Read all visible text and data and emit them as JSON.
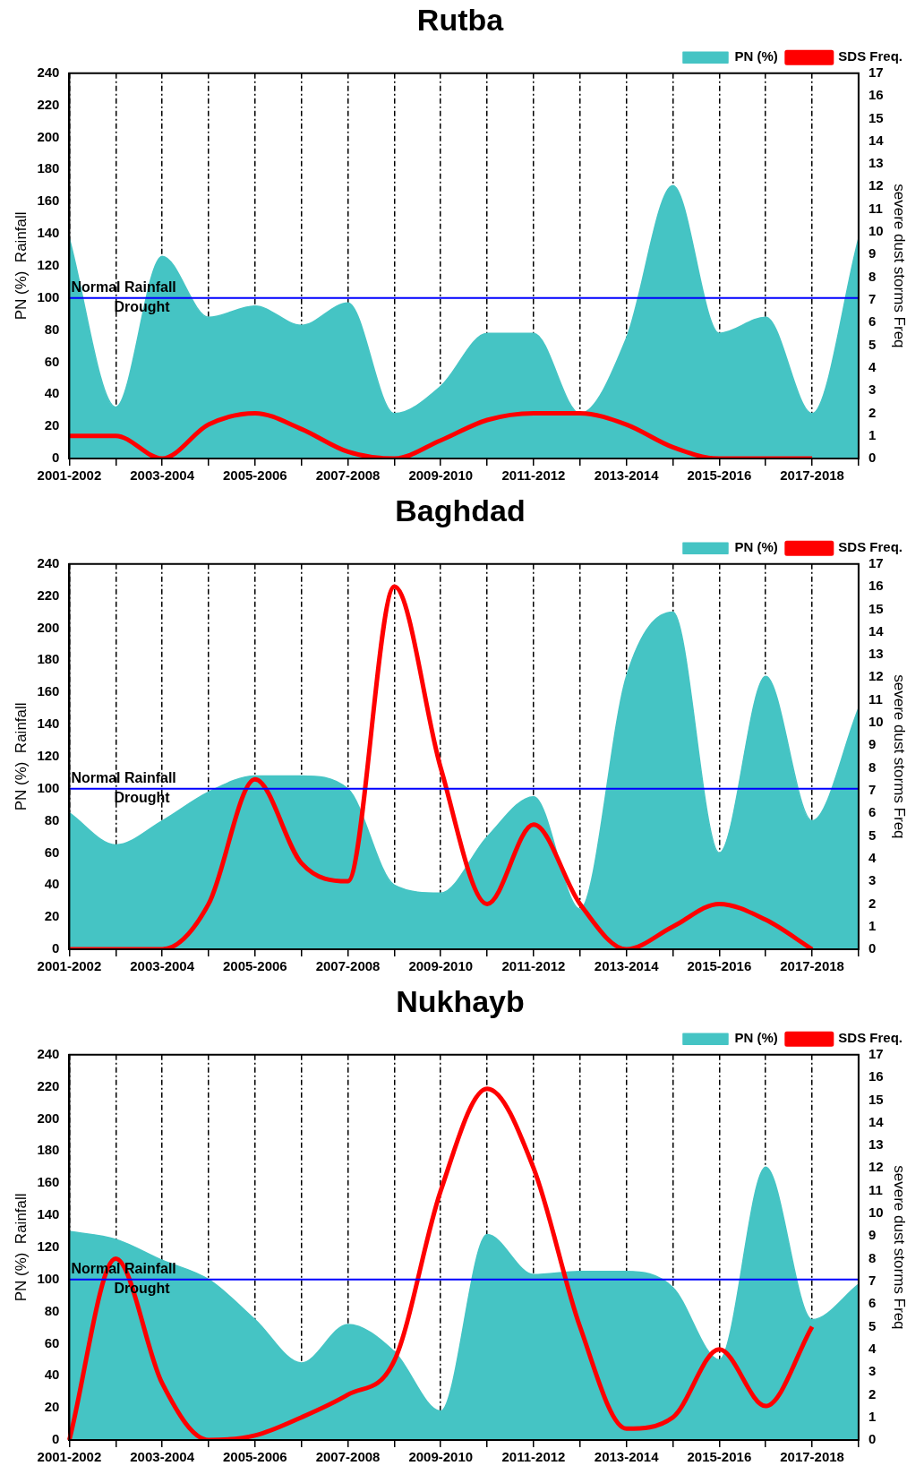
{
  "chart_data": [
    {
      "type": "area",
      "title": "Rutba",
      "ylabel": "PN (%)  Rainfall",
      "y2label": "severe dust storms Freq",
      "categories": [
        "2001-2002",
        null,
        "2003-2004",
        null,
        "2005-2006",
        null,
        "2007-2008",
        null,
        "2009-2010",
        null,
        "2011-2012",
        null,
        "2013-2014",
        null,
        "2015-2016",
        null,
        "2017-2018",
        null
      ],
      "series": [
        {
          "name": "PN (%)",
          "color": "#45c4c4",
          "values": [
            137,
            32,
            126,
            88,
            95,
            83,
            97,
            28,
            45,
            78,
            78,
            28,
            75,
            170,
            78,
            88,
            28,
            137
          ]
        },
        {
          "name": "SDS Freq.",
          "type": "line",
          "axis": "y2",
          "color": "#ff0000",
          "values": [
            1,
            1,
            0,
            1.5,
            2,
            1.3,
            0.3,
            0,
            0.8,
            1.7,
            2,
            2,
            1.5,
            0.5,
            0,
            0,
            0,
            null
          ]
        }
      ],
      "ylim": [
        0,
        240
      ],
      "yticks": [
        0,
        20,
        40,
        60,
        80,
        100,
        120,
        140,
        160,
        180,
        200,
        220,
        240
      ],
      "y2lim": [
        0,
        17
      ],
      "y2ticks": [
        0,
        1,
        2,
        3,
        4,
        5,
        6,
        7,
        8,
        9,
        10,
        11,
        12,
        13,
        14,
        15,
        16,
        17
      ],
      "grid": "x",
      "legend": "top right",
      "ref_lines": [
        {
          "axis": "y",
          "value": 100,
          "label": "Normal Rainfall",
          "color": "#0000ff"
        }
      ],
      "annotations": [
        "Drought"
      ]
    },
    {
      "type": "area",
      "title": "Baghdad",
      "ylabel": "PN (%)  Rainfall",
      "y2label": "severe dust storms Freq",
      "categories": [
        "2001-2002",
        null,
        "2003-2004",
        null,
        "2005-2006",
        null,
        "2007-2008",
        null,
        "2009-2010",
        null,
        "2011-2012",
        null,
        "2013-2014",
        null,
        "2015-2016",
        null,
        "2017-2018",
        null
      ],
      "series": [
        {
          "name": "PN (%)",
          "color": "#45c4c4",
          "values": [
            85,
            65,
            80,
            98,
            108,
            108,
            100,
            40,
            35,
            70,
            95,
            25,
            170,
            210,
            60,
            170,
            80,
            150
          ]
        },
        {
          "name": "SDS Freq.",
          "type": "line",
          "axis": "y2",
          "color": "#ff0000",
          "values": [
            0,
            0,
            0,
            2,
            7.5,
            3.8,
            3,
            16,
            8,
            2,
            5.5,
            2,
            0,
            1,
            2,
            1.3,
            0,
            null
          ]
        }
      ],
      "ylim": [
        0,
        240
      ],
      "yticks": [
        0,
        20,
        40,
        60,
        80,
        100,
        120,
        140,
        160,
        180,
        200,
        220,
        240
      ],
      "y2lim": [
        0,
        17
      ],
      "y2ticks": [
        0,
        1,
        2,
        3,
        4,
        5,
        6,
        7,
        8,
        9,
        10,
        11,
        12,
        13,
        14,
        15,
        16,
        17
      ],
      "grid": "x",
      "legend": "top right",
      "ref_lines": [
        {
          "axis": "y",
          "value": 100,
          "label": "Normal Rainfall",
          "color": "#0000ff"
        }
      ],
      "annotations": [
        "Drought"
      ]
    },
    {
      "type": "area",
      "title": "Nukhayb",
      "ylabel": "PN (%)  Rainfall",
      "y2label": "severe dust storms Freq",
      "categories": [
        "2001-2002",
        null,
        "2003-2004",
        null,
        "2005-2006",
        null,
        "2007-2008",
        null,
        "2009-2010",
        null,
        "2011-2012",
        null,
        "2013-2014",
        null,
        "2015-2016",
        null,
        "2017-2018",
        null
      ],
      "series": [
        {
          "name": "PN (%)",
          "color": "#45c4c4",
          "values": [
            130,
            125,
            112,
            100,
            75,
            48,
            72,
            55,
            18,
            128,
            103,
            105,
            105,
            95,
            50,
            170,
            75,
            97
          ]
        },
        {
          "name": "SDS Freq.",
          "type": "line",
          "axis": "y2",
          "color": "#ff0000",
          "values": [
            0,
            8,
            2.5,
            0,
            0.2,
            1,
            2,
            3.5,
            11,
            15.5,
            12,
            5,
            0.5,
            1,
            4,
            1.5,
            5,
            null
          ]
        }
      ],
      "ylim": [
        0,
        240
      ],
      "yticks": [
        0,
        20,
        40,
        60,
        80,
        100,
        120,
        140,
        160,
        180,
        200,
        220,
        240
      ],
      "y2lim": [
        0,
        17
      ],
      "y2ticks": [
        0,
        1,
        2,
        3,
        4,
        5,
        6,
        7,
        8,
        9,
        10,
        11,
        12,
        13,
        14,
        15,
        16,
        17
      ],
      "grid": "x",
      "legend": "top right",
      "ref_lines": [
        {
          "axis": "y",
          "value": 100,
          "label": "Normal Rainfall",
          "color": "#0000ff"
        }
      ],
      "annotations": [
        "Drought"
      ]
    }
  ]
}
